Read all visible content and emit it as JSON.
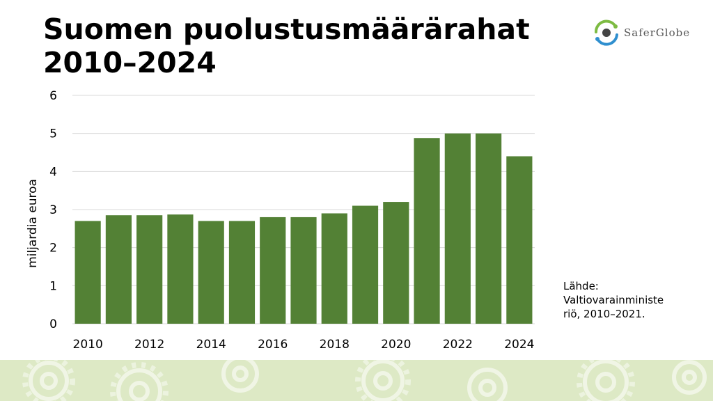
{
  "title_line1": "Suomen puolustusmäärärahat",
  "title_line2": "2010–2024",
  "logo": {
    "text": "SaferGlobe",
    "icon": "saferglobe-logo-icon"
  },
  "source": {
    "label": "Lähde:",
    "line1": "Valtiovarainministe",
    "line2": "riö, 2010–2021."
  },
  "colors": {
    "bar": "#538135",
    "grid": "#d9d9d9",
    "footer": "#dde9c5"
  },
  "chart_data": {
    "type": "bar",
    "categories": [
      "2010",
      "2011",
      "2012",
      "2013",
      "2014",
      "2015",
      "2016",
      "2017",
      "2018",
      "2019",
      "2020",
      "2021",
      "2022",
      "2023",
      "2024"
    ],
    "values": [
      2.7,
      2.85,
      2.85,
      2.87,
      2.7,
      2.7,
      2.8,
      2.8,
      2.9,
      3.1,
      3.2,
      4.88,
      5.0,
      5.0,
      4.4
    ],
    "x_tick_labels": [
      "2010",
      "2012",
      "2014",
      "2016",
      "2018",
      "2020",
      "2022",
      "2024"
    ],
    "y_ticks": [
      0,
      1,
      2,
      3,
      4,
      5,
      6
    ],
    "ylabel": "miljardia euroa",
    "xlabel": "",
    "ylim": [
      0,
      6
    ],
    "grid": true,
    "legend": "none"
  }
}
